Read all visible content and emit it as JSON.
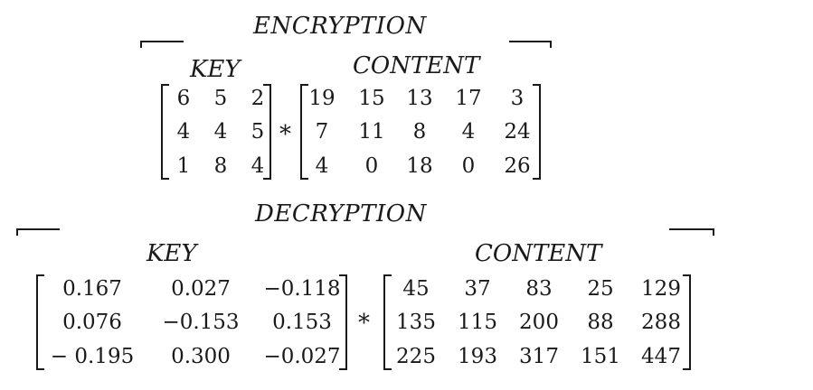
{
  "encryption": {
    "title": "ENCRYPTION",
    "key_label": "KEY",
    "content_label": "CONTENT",
    "operator": "*",
    "key": [
      [
        "6",
        "5",
        "2"
      ],
      [
        "4",
        "4",
        "5"
      ],
      [
        "1",
        "8",
        "4"
      ]
    ],
    "content": [
      [
        "19",
        "15",
        "13",
        "17",
        "3"
      ],
      [
        "7",
        "11",
        "8",
        "4",
        "24"
      ],
      [
        "4",
        "0",
        "18",
        "0",
        "26"
      ]
    ]
  },
  "decryption": {
    "title": "DECRYPTION",
    "key_label": "KEY",
    "content_label": "CONTENT",
    "operator": "*",
    "key": [
      [
        "0.167",
        "0.027",
        "−0.118"
      ],
      [
        "0.076",
        "−0.153",
        "0.153"
      ],
      [
        "− 0.195",
        "0.300",
        "−0.027"
      ]
    ],
    "content": [
      [
        "45",
        "37",
        "83",
        "25",
        "129"
      ],
      [
        "135",
        "115",
        "200",
        "88",
        "288"
      ],
      [
        "225",
        "193",
        "317",
        "151",
        "447"
      ]
    ]
  }
}
